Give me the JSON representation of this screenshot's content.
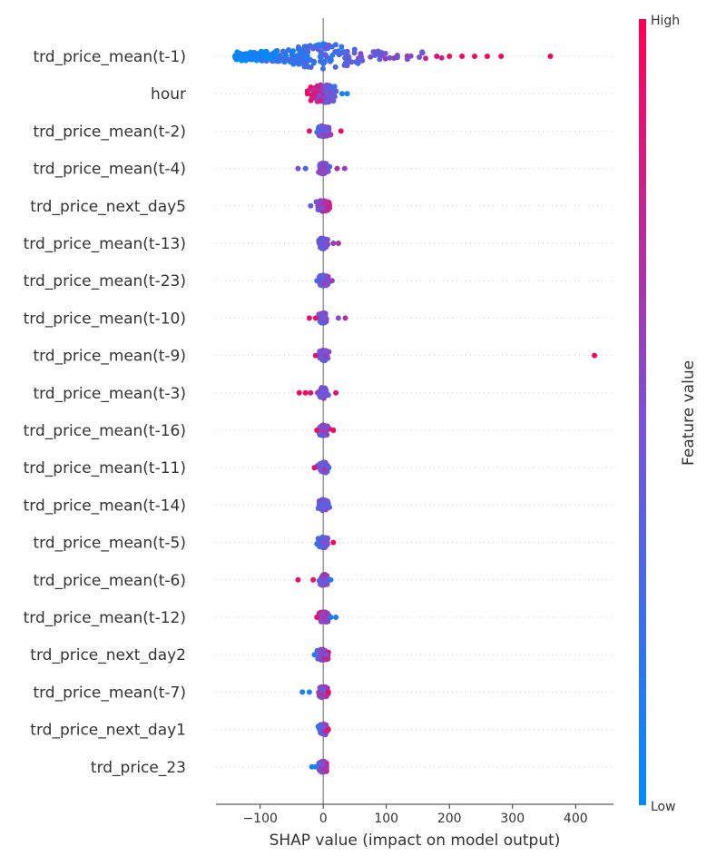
{
  "chart_data": {
    "type": "scatter",
    "subtype": "shap-beeswarm-summary",
    "title": "",
    "xlabel": "SHAP value (impact on model output)",
    "ylabel": "",
    "xlim": [
      -170,
      460
    ],
    "x_ticks": [
      -100,
      0,
      100,
      200,
      300,
      400
    ],
    "x_tick_labels": [
      "−100",
      "0",
      "100",
      "200",
      "300",
      "400"
    ],
    "grid": false,
    "colorbar": {
      "label": "Feature value",
      "high_label": "High",
      "low_label": "Low",
      "low_color": "#008bfb",
      "mid_color": "#7d4fd4",
      "high_color": "#ff0052"
    },
    "features": [
      {
        "name": "trd_price_mean(t-1)",
        "min": -140,
        "max": 360,
        "spread": 55,
        "outliers": [
          [
            -140,
            0.05
          ],
          [
            -130,
            0.1
          ],
          [
            180,
            0.9
          ],
          [
            200,
            0.92
          ],
          [
            220,
            0.95
          ],
          [
            240,
            0.95
          ],
          [
            260,
            0.98
          ],
          [
            282,
            0.96
          ],
          [
            360,
            0.98
          ]
        ],
        "trend": 1.0
      },
      {
        "name": "hour",
        "min": -28,
        "max": 40,
        "spread": 28,
        "outliers": [
          [
            -25,
            0.95
          ],
          [
            38,
            0.05
          ],
          [
            30,
            0.1
          ]
        ],
        "trend": -1.0
      },
      {
        "name": "trd_price_mean(t-2)",
        "min": -25,
        "max": 30,
        "spread": 14,
        "outliers": [
          [
            -22,
            0.9
          ],
          [
            28,
            0.92
          ]
        ],
        "trend": 0.6
      },
      {
        "name": "trd_price_mean(t-4)",
        "min": -40,
        "max": 35,
        "spread": 10,
        "outliers": [
          [
            -40,
            0.45
          ],
          [
            -28,
            0.3
          ],
          [
            34,
            0.6
          ],
          [
            22,
            0.7
          ]
        ],
        "trend": 0.2
      },
      {
        "name": "trd_price_next_day5",
        "min": -20,
        "max": 10,
        "spread": 16,
        "outliers": [
          [
            -20,
            0.4
          ]
        ],
        "trend": 0.7
      },
      {
        "name": "trd_price_mean(t-13)",
        "min": -10,
        "max": 25,
        "spread": 10,
        "outliers": [
          [
            24,
            0.7
          ],
          [
            16,
            0.6
          ]
        ],
        "trend": 0.3
      },
      {
        "name": "trd_price_mean(t-23)",
        "min": -12,
        "max": 15,
        "spread": 10,
        "outliers": [
          [
            -10,
            0.3
          ],
          [
            14,
            0.6
          ]
        ],
        "trend": 0.3
      },
      {
        "name": "trd_price_mean(t-10)",
        "min": -22,
        "max": 36,
        "spread": 8,
        "outliers": [
          [
            -22,
            0.9
          ],
          [
            -12,
            0.9
          ],
          [
            24,
            0.5
          ],
          [
            35,
            0.7
          ]
        ],
        "trend": 0.4
      },
      {
        "name": "trd_price_mean(t-9)",
        "min": -15,
        "max": 430,
        "spread": 10,
        "outliers": [
          [
            430,
            0.95
          ],
          [
            -12,
            0.9
          ]
        ],
        "trend": 0.0
      },
      {
        "name": "trd_price_mean(t-3)",
        "min": -38,
        "max": 22,
        "spread": 10,
        "outliers": [
          [
            -38,
            0.95
          ],
          [
            -28,
            0.95
          ],
          [
            -20,
            0.85
          ],
          [
            20,
            0.9
          ]
        ],
        "trend": 0.2
      },
      {
        "name": "trd_price_mean(t-16)",
        "min": -12,
        "max": 18,
        "spread": 10,
        "outliers": [
          [
            16,
            0.95
          ],
          [
            -10,
            0.95
          ]
        ],
        "trend": 0.5
      },
      {
        "name": "trd_price_mean(t-11)",
        "min": -14,
        "max": 10,
        "spread": 10,
        "outliers": [
          [
            -14,
            0.9
          ],
          [
            9,
            0.3
          ]
        ],
        "trend": 0.2
      },
      {
        "name": "trd_price_mean(t-14)",
        "min": -12,
        "max": 10,
        "spread": 10,
        "outliers": [
          [
            8,
            0.3
          ]
        ],
        "trend": 0.1
      },
      {
        "name": "trd_price_mean(t-5)",
        "min": -10,
        "max": 18,
        "spread": 10,
        "outliers": [
          [
            16,
            0.95
          ],
          [
            -8,
            0.3
          ]
        ],
        "trend": 0.6
      },
      {
        "name": "trd_price_mean(t-6)",
        "min": -40,
        "max": 14,
        "spread": 10,
        "outliers": [
          [
            -40,
            0.9
          ],
          [
            -16,
            0.9
          ],
          [
            12,
            0.1
          ]
        ],
        "trend": 0.1
      },
      {
        "name": "trd_price_mean(t-12)",
        "min": -10,
        "max": 22,
        "spread": 10,
        "outliers": [
          [
            20,
            0.1
          ],
          [
            12,
            0.15
          ],
          [
            -10,
            0.9
          ]
        ],
        "trend": -0.4
      },
      {
        "name": "trd_price_next_day2",
        "min": -15,
        "max": 8,
        "spread": 12,
        "outliers": [
          [
            -14,
            0.1
          ],
          [
            5,
            0.4
          ]
        ],
        "trend": 0.8
      },
      {
        "name": "trd_price_mean(t-7)",
        "min": -33,
        "max": 10,
        "spread": 10,
        "outliers": [
          [
            -33,
            0.1
          ],
          [
            -22,
            0.1
          ],
          [
            8,
            0.95
          ]
        ],
        "trend": 0.3
      },
      {
        "name": "trd_price_next_day1",
        "min": -8,
        "max": 10,
        "spread": 10,
        "outliers": [
          [
            8,
            0.9
          ]
        ],
        "trend": 0.5
      },
      {
        "name": "trd_price_23",
        "min": -18,
        "max": 5,
        "spread": 10,
        "outliers": [
          [
            -18,
            0.1
          ],
          [
            -12,
            0.1
          ]
        ],
        "trend": 0.4
      }
    ]
  }
}
